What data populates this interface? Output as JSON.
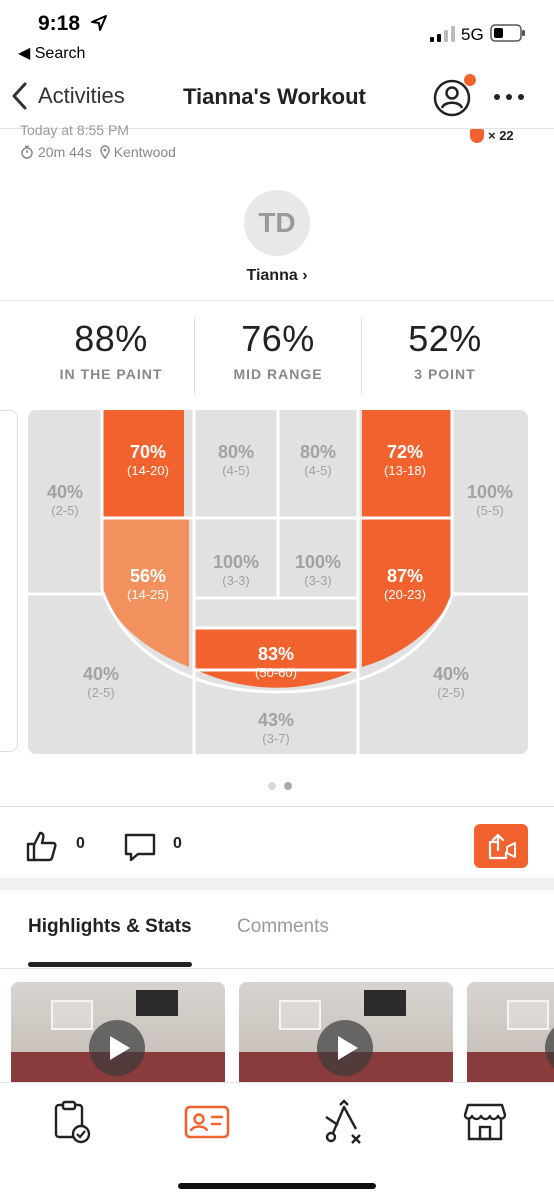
{
  "status_bar": {
    "time": "9:18",
    "back_label": "◀ Search",
    "network": "5G"
  },
  "nav": {
    "back_label": "Activities",
    "title": "Tianna's Workout"
  },
  "meta": {
    "date": "Today at 8:55 PM",
    "duration": "20m 44s",
    "location": "Kentwood",
    "badge_count": "× 22"
  },
  "user": {
    "initials": "TD",
    "name": "Tianna ›"
  },
  "stats": [
    {
      "value": "88%",
      "label": "IN THE PAINT"
    },
    {
      "value": "76%",
      "label": "MID RANGE"
    },
    {
      "value": "52%",
      "label": "3 POINT"
    }
  ],
  "court": {
    "colors": {
      "grey": "#e1e1e1",
      "hot": "#f2622e",
      "warm": "#f2905e",
      "lines": "#ffffff"
    },
    "zones": {
      "left_corner_three": {
        "pct": "40%",
        "made": "(2-5)"
      },
      "left_block": {
        "pct": "70%",
        "made": "(14-20)"
      },
      "left_short_baseline": {
        "pct": "80%",
        "made": "(4-5)"
      },
      "right_short_baseline": {
        "pct": "80%",
        "made": "(4-5)"
      },
      "right_block": {
        "pct": "72%",
        "made": "(13-18)"
      },
      "right_corner_three": {
        "pct": "100%",
        "made": "(5-5)"
      },
      "left_elbow_lane": {
        "pct": "56%",
        "made": "(14-25)"
      },
      "left_paint": {
        "pct": "100%",
        "made": "(3-3)"
      },
      "right_paint": {
        "pct": "100%",
        "made": "(3-3)"
      },
      "right_elbow_lane": {
        "pct": "87%",
        "made": "(20-23)"
      },
      "left_wing_three": {
        "pct": "40%",
        "made": "(2-5)"
      },
      "top_of_key": {
        "pct": "83%",
        "made": "(50-60)"
      },
      "top_three": {
        "pct": "43%",
        "made": "(3-7)"
      },
      "right_wing_three": {
        "pct": "40%",
        "made": "(2-5)"
      }
    }
  },
  "social": {
    "likes": "0",
    "comments": "0"
  },
  "tabs": {
    "highlights": "Highlights & Stats",
    "comments": "Comments"
  },
  "icons": {
    "back": "chevron-left-icon",
    "profile": "profile-icon",
    "more": "more-icon",
    "like": "thumbs-up-icon",
    "comment": "comment-icon",
    "share": "share-icon",
    "activities": "clipboard-check-icon",
    "profile_card": "id-card-icon",
    "drills": "play-diagram-icon",
    "shop": "store-icon"
  }
}
